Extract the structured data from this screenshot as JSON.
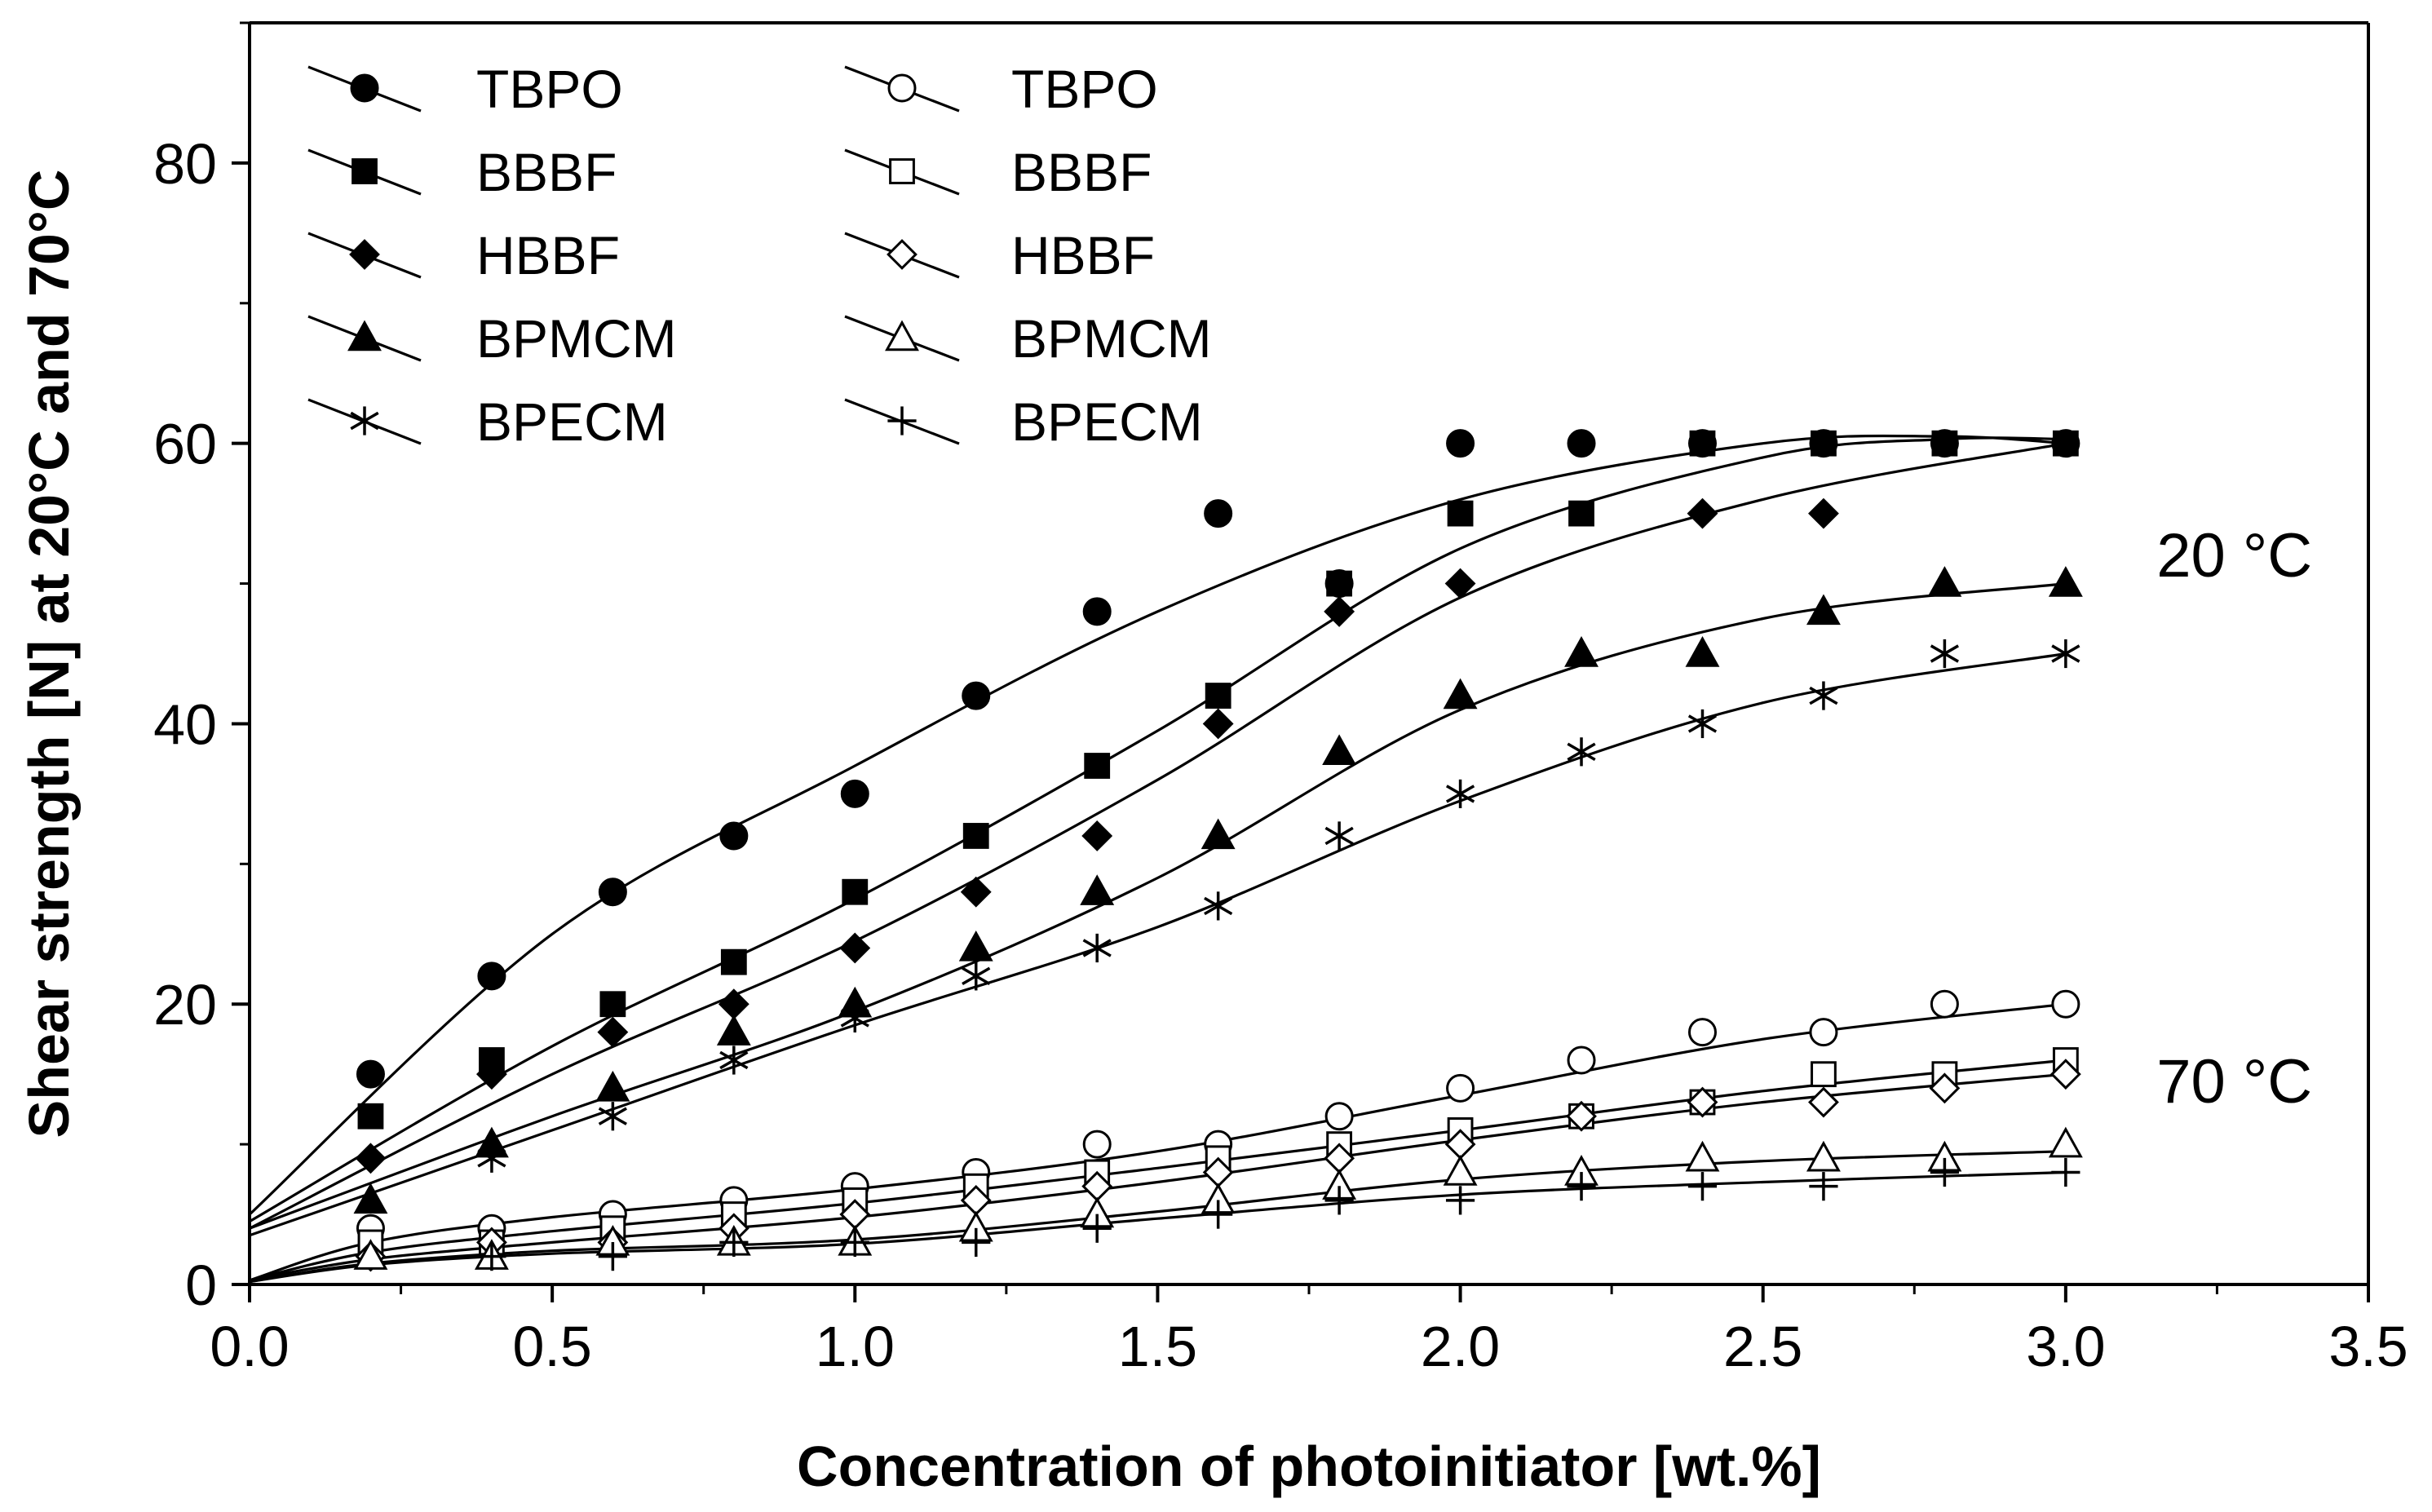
{
  "chart_data": {
    "type": "scatter",
    "title": "",
    "xlabel": "Concentration of photoinitiator [wt.%]",
    "ylabel": "Shear strength [N] at 20°C and 70°C",
    "xlim": [
      0,
      3.5
    ],
    "ylim": [
      0,
      90
    ],
    "x_ticks": [
      0,
      0.5,
      1.0,
      1.5,
      2.0,
      2.5,
      3.0,
      3.5
    ],
    "x_tick_labels": [
      "0.0",
      "0.5",
      "1.0",
      "1.5",
      "2.0",
      "2.5",
      "3.0",
      "3.5"
    ],
    "y_ticks": [
      0,
      20,
      40,
      60,
      80
    ],
    "y_tick_labels": [
      "0",
      "20",
      "40",
      "60",
      "80"
    ],
    "grid": false,
    "legend_position": "top-left",
    "annotations": [
      {
        "text": "20 °C",
        "x": 3.15,
        "y": 52
      },
      {
        "text": "70 °C",
        "x": 3.15,
        "y": 14.5
      }
    ],
    "series": [
      {
        "name": "TBPO",
        "group": "20°C",
        "marker": "circle",
        "filled": true,
        "x": [
          0.2,
          0.4,
          0.6,
          0.8,
          1.0,
          1.2,
          1.4,
          1.6,
          1.8,
          2.0,
          2.2,
          2.4,
          2.6,
          2.8,
          3.0
        ],
        "y": [
          15,
          22,
          28,
          32,
          35,
          42,
          48,
          55,
          50,
          60,
          60,
          60,
          60,
          60,
          60
        ],
        "fit_x": [
          0,
          0.5,
          1.0,
          1.5,
          2.0,
          2.5,
          2.8,
          3.0
        ],
        "fit_y": [
          5,
          25,
          37,
          48,
          56,
          60,
          60.5,
          60
        ]
      },
      {
        "name": "BBBF",
        "group": "20°C",
        "marker": "square",
        "filled": true,
        "x": [
          0.2,
          0.4,
          0.6,
          0.8,
          1.0,
          1.2,
          1.4,
          1.6,
          1.8,
          2.0,
          2.2,
          2.4,
          2.6,
          2.8,
          3.0
        ],
        "y": [
          12,
          16,
          20,
          23,
          28,
          32,
          37,
          42,
          50,
          55,
          55,
          60,
          60,
          60,
          60
        ],
        "fit_x": [
          0,
          0.5,
          1.0,
          1.5,
          2.0,
          2.5,
          2.8,
          3.0
        ],
        "fit_y": [
          4.5,
          17,
          27.5,
          39.5,
          52.5,
          59,
          60.3,
          60.3
        ]
      },
      {
        "name": "HBBF",
        "group": "20°C",
        "marker": "diamond",
        "filled": true,
        "x": [
          0.2,
          0.4,
          0.6,
          0.8,
          1.0,
          1.2,
          1.4,
          1.6,
          1.8,
          2.0,
          2.4,
          2.6
        ],
        "y": [
          9,
          15,
          18,
          20,
          24,
          28,
          32,
          40,
          48,
          50,
          55,
          55
        ],
        "fit_x": [
          0,
          0.5,
          1.0,
          1.5,
          2.0,
          2.5,
          3.0
        ],
        "fit_y": [
          4,
          15,
          24.5,
          36,
          49,
          56,
          60
        ]
      },
      {
        "name": "BPMCM",
        "group": "20°C",
        "marker": "triangle",
        "filled": true,
        "x": [
          0.2,
          0.4,
          0.6,
          0.8,
          1.0,
          1.2,
          1.4,
          1.6,
          1.8,
          2.0,
          2.2,
          2.4,
          2.6,
          2.8,
          3.0
        ],
        "y": [
          6,
          10,
          14,
          18,
          20,
          24,
          28,
          32,
          38,
          42,
          45,
          45,
          48,
          50,
          50
        ],
        "fit_x": [
          0,
          0.5,
          1.0,
          1.5,
          2.0,
          2.5,
          3.0
        ],
        "fit_y": [
          4,
          12,
          19.5,
          29,
          41,
          47.5,
          50
        ]
      },
      {
        "name": "BPECM",
        "group": "20°C",
        "marker": "asterisk",
        "filled": true,
        "x": [
          0.4,
          0.6,
          0.8,
          1.0,
          1.2,
          1.4,
          1.6,
          1.8,
          2.0,
          2.2,
          2.4,
          2.6,
          2.8,
          3.0
        ],
        "y": [
          9,
          12,
          16,
          19,
          22,
          24,
          27,
          32,
          35,
          38,
          40,
          42,
          45,
          45
        ],
        "fit_x": [
          0,
          0.5,
          1.0,
          1.5,
          2.0,
          2.5,
          3.0
        ],
        "fit_y": [
          3.5,
          11,
          18.5,
          25.5,
          34.5,
          41.5,
          45
        ]
      },
      {
        "name": "TBPO",
        "group": "70°C",
        "marker": "circle",
        "filled": false,
        "x": [
          0.2,
          0.4,
          0.6,
          0.8,
          1.0,
          1.2,
          1.4,
          1.6,
          1.8,
          2.0,
          2.2,
          2.4,
          2.6,
          2.8,
          3.0
        ],
        "y": [
          4,
          4,
          5,
          6,
          7,
          8,
          10,
          10,
          12,
          14,
          16,
          18,
          18,
          20,
          20
        ],
        "fit_x": [
          0,
          0.2,
          0.5,
          1.0,
          1.5,
          2.0,
          2.5,
          3.0
        ],
        "fit_y": [
          0.3,
          3,
          4.8,
          6.8,
          9.5,
          13.5,
          17.5,
          20
        ]
      },
      {
        "name": "BBBF",
        "group": "70°C",
        "marker": "square",
        "filled": false,
        "x": [
          0.2,
          0.4,
          0.6,
          0.8,
          1.0,
          1.2,
          1.4,
          1.6,
          1.8,
          2.0,
          2.2,
          2.4,
          2.6,
          2.8,
          3.0
        ],
        "y": [
          3,
          3,
          4,
          5,
          6,
          7,
          8,
          9,
          10,
          11,
          12,
          13,
          15,
          15,
          16
        ],
        "fit_x": [
          0,
          0.2,
          0.5,
          1.0,
          1.5,
          2.0,
          2.5,
          3.0
        ],
        "fit_y": [
          0.3,
          2.3,
          3.8,
          5.8,
          8.3,
          11,
          13.8,
          16
        ]
      },
      {
        "name": "HBBF",
        "group": "70°C",
        "marker": "diamond",
        "filled": false,
        "x": [
          0.2,
          0.4,
          0.6,
          0.8,
          1.0,
          1.2,
          1.4,
          1.6,
          1.8,
          2.0,
          2.2,
          2.4,
          2.6,
          2.8,
          3.0
        ],
        "y": [
          2,
          3,
          3,
          4,
          5,
          6,
          7,
          8,
          9,
          10,
          12,
          13,
          13,
          14,
          15
        ],
        "fit_x": [
          0,
          0.2,
          0.5,
          1.0,
          1.5,
          2.0,
          2.5,
          3.0
        ],
        "fit_y": [
          0.3,
          1.8,
          3,
          4.8,
          7.3,
          10.3,
          13,
          15
        ]
      },
      {
        "name": "BPMCM",
        "group": "70°C",
        "marker": "triangle",
        "filled": false,
        "x": [
          0.2,
          0.4,
          0.6,
          0.8,
          1.0,
          1.2,
          1.4,
          1.6,
          1.8,
          2.0,
          2.2,
          2.4,
          2.6,
          2.8,
          3.0
        ],
        "y": [
          2,
          2,
          3,
          3,
          3,
          4,
          5,
          6,
          7,
          8,
          8,
          9,
          9,
          9,
          10
        ],
        "fit_x": [
          0,
          0.2,
          0.5,
          1.0,
          1.5,
          2.0,
          2.5,
          3.0
        ],
        "fit_y": [
          0.2,
          1.5,
          2.4,
          3.2,
          5.2,
          7.5,
          8.8,
          9.5
        ]
      },
      {
        "name": "BPECM",
        "group": "70°C",
        "marker": "plus",
        "filled": false,
        "x": [
          0.4,
          0.6,
          0.8,
          1.0,
          1.2,
          1.4,
          1.6,
          1.8,
          2.0,
          2.2,
          2.4,
          2.6,
          2.8,
          3.0
        ],
        "y": [
          2,
          2,
          3,
          3,
          3,
          4,
          5,
          6,
          6,
          7,
          7,
          7,
          8,
          8
        ],
        "fit_x": [
          0,
          0.2,
          0.5,
          1.0,
          1.5,
          2.0,
          2.5,
          3.0
        ],
        "fit_y": [
          0.2,
          1.4,
          2.2,
          2.9,
          4.7,
          6.4,
          7.3,
          8
        ]
      }
    ]
  }
}
